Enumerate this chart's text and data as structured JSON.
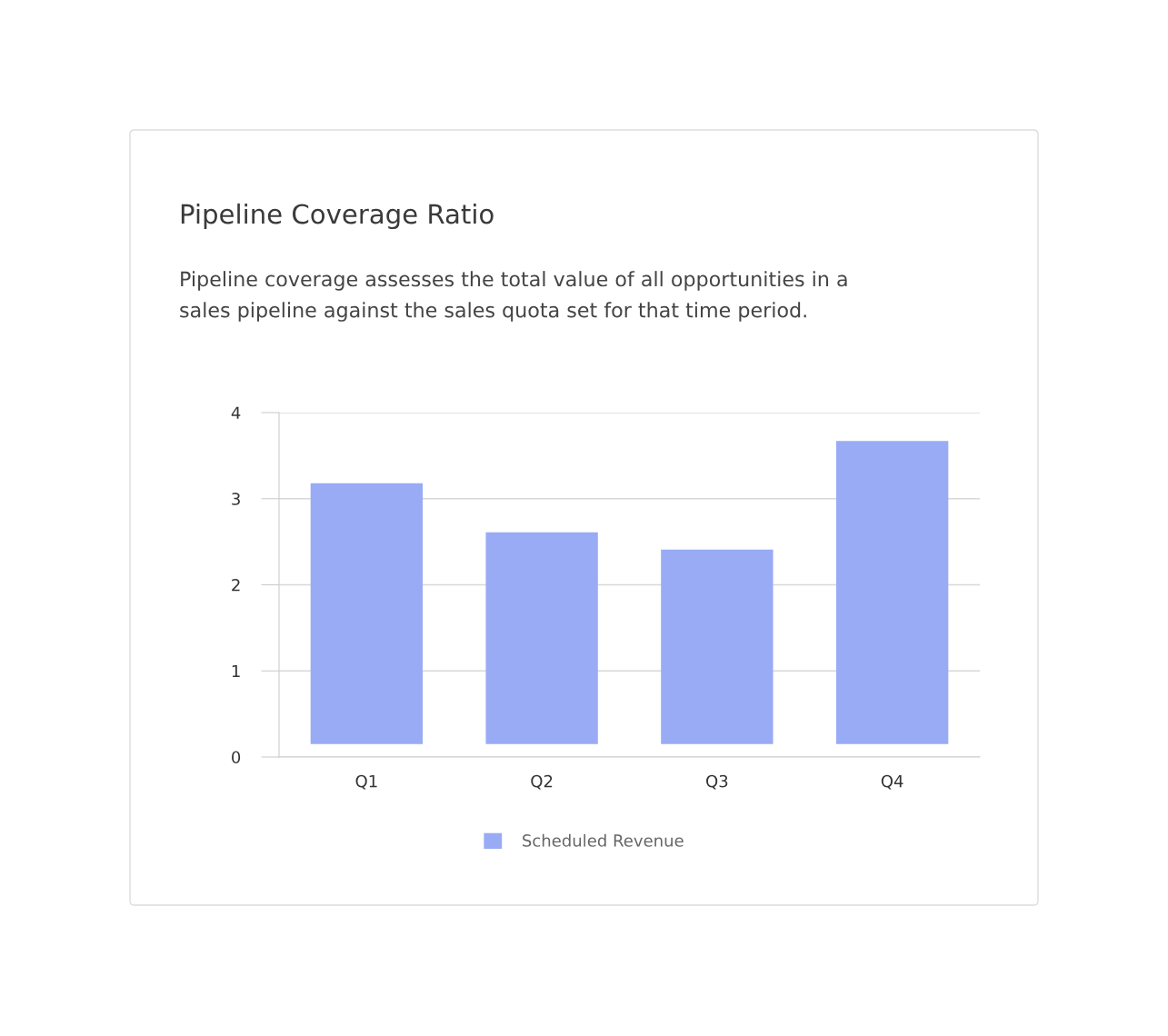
{
  "chart_data": {
    "type": "bar",
    "title": "Pipeline Coverage Ratio",
    "subtitle": "Pipeline coverage assesses the total value of all opportunities in a\nsales pipeline against the sales quota set for that time period.",
    "categories": [
      "Q1",
      "Q2",
      "Q3",
      "Q4"
    ],
    "series": [
      {
        "name": "Scheduled Revenue",
        "color": "#99abf5",
        "values": [
          3.03,
          2.46,
          2.26,
          3.52
        ],
        "base": [
          0.15,
          0.15,
          0.15,
          0.15
        ]
      }
    ],
    "ylim": [
      0,
      4
    ],
    "yticks": [
      0,
      1,
      2,
      3,
      4
    ],
    "grid": "y",
    "legend": "bottom"
  }
}
